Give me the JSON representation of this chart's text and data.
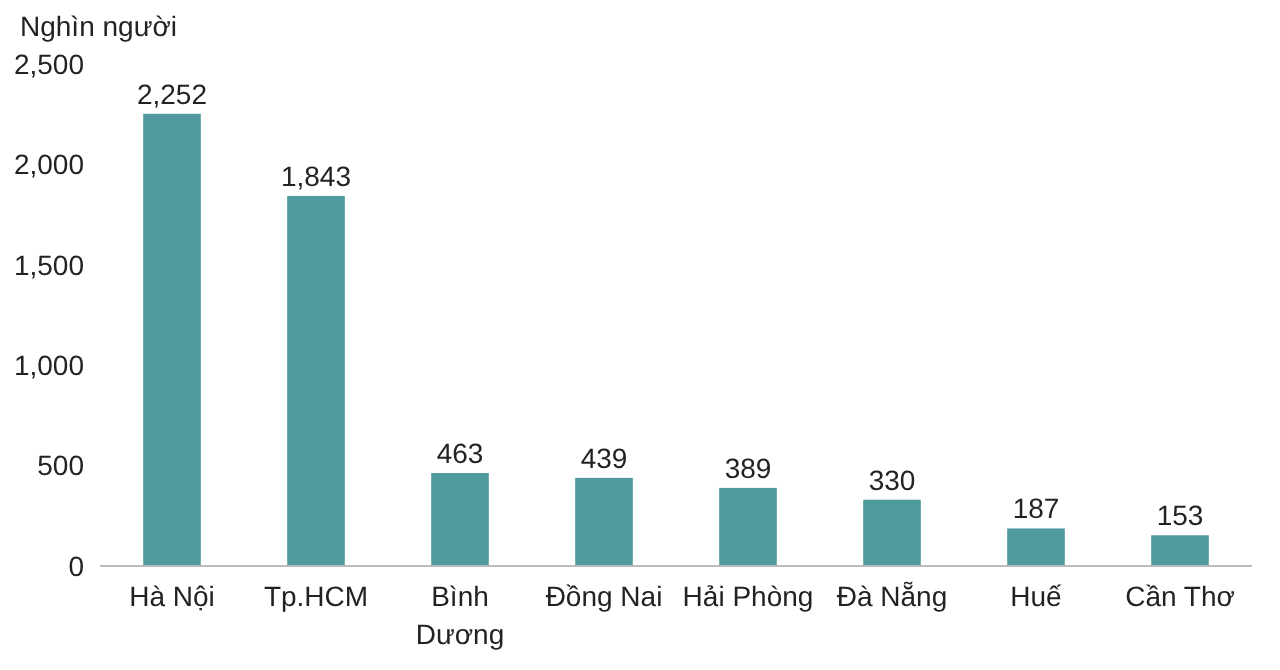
{
  "chart_data": {
    "type": "bar",
    "ylabel": "Nghìn người",
    "categories": [
      "Hà Nội",
      "Tp.HCM",
      "Bình Dương",
      "Đồng Nai",
      "Hải Phòng",
      "Đà Nẵng",
      "Huế",
      "Cần Thơ"
    ],
    "values": [
      2252,
      1843,
      463,
      439,
      389,
      330,
      187,
      153
    ],
    "value_labels": [
      "2,252",
      "1,843",
      "463",
      "439",
      "389",
      "330",
      "187",
      "153"
    ],
    "color": "#4f9a9c",
    "ylim": [
      0,
      2500
    ],
    "yticks": [
      {
        "value": 0,
        "label": "0"
      },
      {
        "value": 500,
        "label": "500"
      },
      {
        "value": 1000,
        "label": "1,000"
      },
      {
        "value": 1500,
        "label": "1,500"
      },
      {
        "value": 2000,
        "label": "2,000"
      },
      {
        "value": 2500,
        "label": "2,500"
      }
    ],
    "grid": false
  }
}
